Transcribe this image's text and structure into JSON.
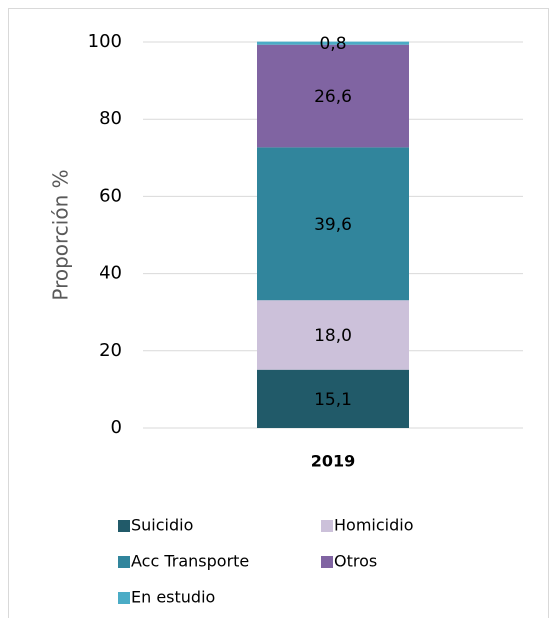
{
  "chart_data": {
    "type": "stacked_bar",
    "categories": [
      "2019"
    ],
    "y_label": "Proporción %",
    "series": [
      {
        "name": "Suicidio",
        "color": "#215a69",
        "values": [
          15.1
        ],
        "value_labels": [
          "15,1"
        ]
      },
      {
        "name": "Homicidio",
        "color": "#ccc1da",
        "values": [
          18.0
        ],
        "value_labels": [
          "18,0"
        ]
      },
      {
        "name": "Acc Transporte",
        "color": "#31859c",
        "values": [
          39.6
        ],
        "value_labels": [
          "39,6"
        ]
      },
      {
        "name": "Otros",
        "color": "#8064a2",
        "values": [
          26.6
        ],
        "value_labels": [
          "26,6"
        ]
      },
      {
        "name": "En estudio",
        "color": "#4bacc6",
        "values": [
          0.8
        ],
        "value_labels": [
          "0,8"
        ]
      }
    ],
    "ylim": [
      0,
      100
    ],
    "yticks": [
      0,
      20,
      40,
      60,
      80,
      100
    ],
    "grid": true,
    "legend": "bottom"
  }
}
